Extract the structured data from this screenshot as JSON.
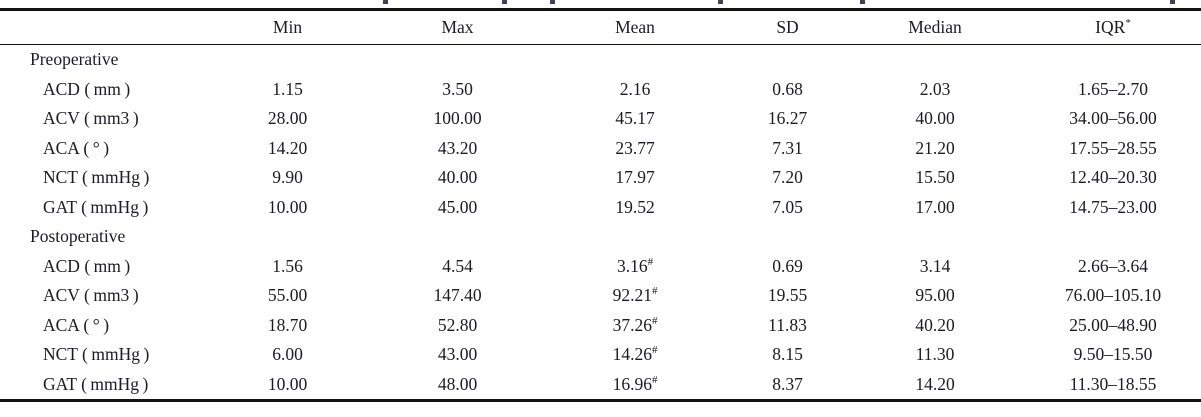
{
  "table": {
    "columns": [
      "",
      "Min",
      "Max",
      "Mean",
      "SD",
      "Median",
      "IQR"
    ],
    "iqr_header_marker": "*",
    "sections": [
      {
        "label": "Preoperative",
        "rows": [
          {
            "label": "ACD ( mm )",
            "min": "1.15",
            "max": "3.50",
            "mean": "2.16",
            "mean_marker": "",
            "sd": "0.68",
            "median": "2.03",
            "iqr": "1.65–2.70"
          },
          {
            "label": "ACV ( mm3 )",
            "min": "28.00",
            "max": "100.00",
            "mean": "45.17",
            "mean_marker": "",
            "sd": "16.27",
            "median": "40.00",
            "iqr": "34.00–56.00"
          },
          {
            "label": "ACA ( ° )",
            "min": "14.20",
            "max": "43.20",
            "mean": "23.77",
            "mean_marker": "",
            "sd": "7.31",
            "median": "21.20",
            "iqr": "17.55–28.55"
          },
          {
            "label": "NCT ( mmHg )",
            "min": "9.90",
            "max": "40.00",
            "mean": "17.97",
            "mean_marker": "",
            "sd": "7.20",
            "median": "15.50",
            "iqr": "12.40–20.30"
          },
          {
            "label": "GAT ( mmHg )",
            "min": "10.00",
            "max": "45.00",
            "mean": "19.52",
            "mean_marker": "",
            "sd": "7.05",
            "median": "17.00",
            "iqr": "14.75–23.00"
          }
        ]
      },
      {
        "label": "Postoperative",
        "rows": [
          {
            "label": "ACD ( mm )",
            "min": "1.56",
            "max": "4.54",
            "mean": "3.16",
            "mean_marker": "#",
            "sd": "0.69",
            "median": "3.14",
            "iqr": "2.66–3.64"
          },
          {
            "label": "ACV ( mm3 )",
            "min": "55.00",
            "max": "147.40",
            "mean": "92.21",
            "mean_marker": "#",
            "sd": "19.55",
            "median": "95.00",
            "iqr": "76.00–105.10"
          },
          {
            "label": "ACA ( ° )",
            "min": "18.70",
            "max": "52.80",
            "mean": "37.26",
            "mean_marker": "#",
            "sd": "11.83",
            "median": "40.20",
            "iqr": "25.00–48.90"
          },
          {
            "label": "NCT ( mmHg )",
            "min": "6.00",
            "max": "43.00",
            "mean": "14.26",
            "mean_marker": "#",
            "sd": "8.15",
            "median": "11.30",
            "iqr": "9.50–15.50"
          },
          {
            "label": "GAT ( mmHg )",
            "min": "10.00",
            "max": "48.00",
            "mean": "16.96",
            "mean_marker": "#",
            "sd": "8.37",
            "median": "14.20",
            "iqr": "11.30–18.55"
          }
        ]
      }
    ]
  },
  "colors": {
    "text": "#1b1b23",
    "rule": "#131313",
    "background": "#ffffff"
  }
}
